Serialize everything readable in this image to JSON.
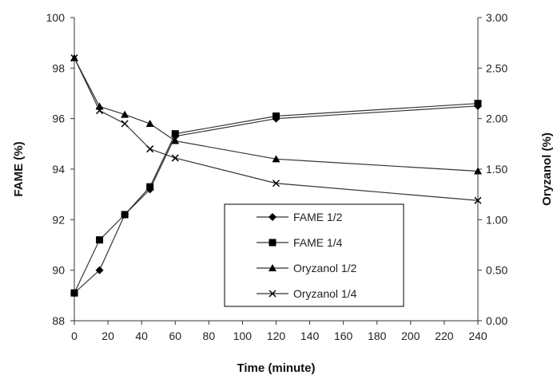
{
  "chart_data": {
    "type": "line",
    "title": "",
    "xlabel": "Time (minute)",
    "ylabel_left": "FAME (%)",
    "ylabel_right": "Oryzanol (%)",
    "x_ticks": [
      0,
      20,
      40,
      60,
      80,
      100,
      120,
      140,
      160,
      180,
      200,
      220,
      240
    ],
    "y_left_ticks": [
      "88",
      "90",
      "92",
      "94",
      "96",
      "98",
      "100"
    ],
    "y_right_ticks": [
      "0.00",
      "0.50",
      "1.00",
      "1.50",
      "2.00",
      "2.50",
      "3.00"
    ],
    "xlim": [
      0,
      240
    ],
    "ylim_left": [
      88,
      100
    ],
    "ylim_right": [
      0,
      3
    ],
    "grid": false,
    "legend_position": "bottom-center",
    "series": [
      {
        "name": "FAME 1/2",
        "axis": "left",
        "marker": "diamond",
        "x": [
          0,
          15,
          30,
          45,
          60,
          120,
          240
        ],
        "y": [
          89.1,
          90.0,
          92.2,
          93.2,
          95.3,
          96.0,
          96.5
        ]
      },
      {
        "name": "FAME 1/4",
        "axis": "left",
        "marker": "square",
        "x": [
          0,
          15,
          30,
          45,
          60,
          120,
          240
        ],
        "y": [
          89.1,
          91.2,
          92.2,
          93.3,
          95.4,
          96.1,
          96.6
        ]
      },
      {
        "name": "Oryzanol 1/2",
        "axis": "right",
        "marker": "triangle",
        "x": [
          0,
          15,
          30,
          45,
          60,
          120,
          240
        ],
        "y": [
          2.6,
          2.12,
          2.04,
          1.95,
          1.78,
          1.6,
          1.48
        ]
      },
      {
        "name": "Oryzanol 1/4",
        "axis": "right",
        "marker": "x",
        "x": [
          0,
          15,
          30,
          45,
          60,
          120,
          240
        ],
        "y": [
          2.6,
          2.08,
          1.95,
          1.7,
          1.61,
          1.36,
          1.19
        ]
      }
    ]
  }
}
